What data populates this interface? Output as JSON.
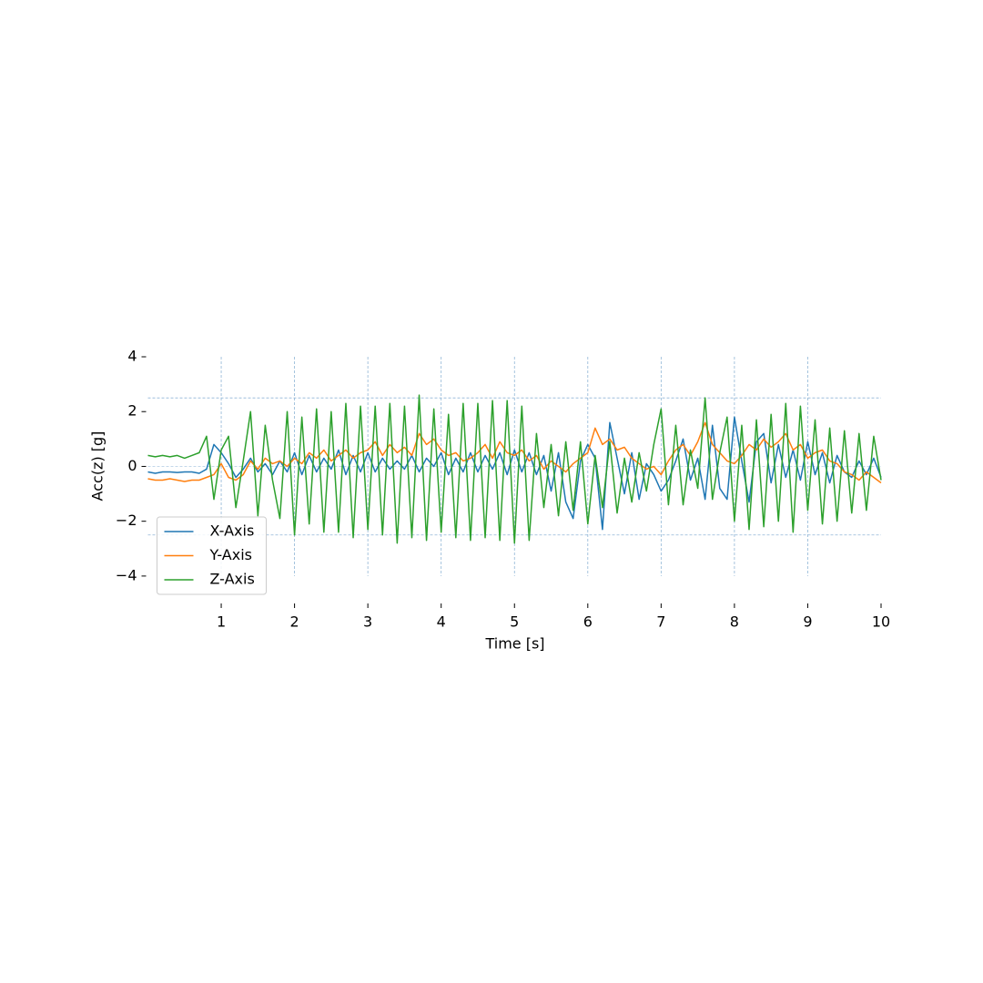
{
  "chart_data": {
    "type": "line",
    "xlabel": "Time [s]",
    "ylabel": "Acc(z) [g]",
    "x": [
      0,
      0.1,
      0.2,
      0.3,
      0.4,
      0.5,
      0.6,
      0.7,
      0.8,
      0.9,
      1,
      1.1,
      1.2,
      1.3,
      1.4,
      1.5,
      1.6,
      1.7,
      1.8,
      1.9,
      2,
      2.1,
      2.2,
      2.3,
      2.4,
      2.5,
      2.6,
      2.7,
      2.8,
      2.9,
      3,
      3.1,
      3.2,
      3.3,
      3.4,
      3.5,
      3.6,
      3.7,
      3.8,
      3.9,
      4,
      4.1,
      4.2,
      4.3,
      4.4,
      4.5,
      4.6,
      4.7,
      4.8,
      4.9,
      5,
      5.1,
      5.2,
      5.3,
      5.4,
      5.5,
      5.6,
      5.7,
      5.8,
      5.9,
      6,
      6.1,
      6.2,
      6.3,
      6.4,
      6.5,
      6.6,
      6.7,
      6.8,
      6.9,
      7,
      7.1,
      7.2,
      7.3,
      7.4,
      7.5,
      7.6,
      7.7,
      7.8,
      7.9,
      8,
      8.1,
      8.2,
      8.3,
      8.4,
      8.5,
      8.6,
      8.7,
      8.8,
      8.9,
      9,
      9.1,
      9.2,
      9.3,
      9.4,
      9.5,
      9.6,
      9.7,
      9.8,
      9.9,
      10
    ],
    "series": [
      {
        "name": "X-Axis",
        "color": "#1f77b4",
        "values": [
          -0.2,
          -0.25,
          -0.2,
          -0.2,
          -0.22,
          -0.2,
          -0.2,
          -0.25,
          -0.1,
          0.8,
          0.5,
          0.1,
          -0.4,
          -0.1,
          0.3,
          -0.2,
          0.1,
          -0.3,
          0.2,
          -0.2,
          0.5,
          -0.3,
          0.4,
          -0.2,
          0.3,
          -0.1,
          0.6,
          -0.3,
          0.4,
          -0.2,
          0.5,
          -0.2,
          0.3,
          -0.1,
          0.2,
          -0.1,
          0.4,
          -0.2,
          0.3,
          0,
          0.5,
          -0.3,
          0.3,
          -0.2,
          0.5,
          -0.2,
          0.4,
          -0.1,
          0.5,
          -0.3,
          0.6,
          -0.2,
          0.5,
          -0.3,
          0.4,
          -0.9,
          0.5,
          -1.3,
          -1.9,
          0.2,
          0.8,
          0.3,
          -2.3,
          1.6,
          0.3,
          -1,
          0.5,
          -1.2,
          0.1,
          -0.3,
          -0.9,
          -0.5,
          0.2,
          1,
          -0.5,
          0.3,
          -1.2,
          1.5,
          -0.8,
          -1.2,
          1.8,
          0.2,
          -1.3,
          0.9,
          1.2,
          -0.6,
          0.8,
          -0.4,
          0.6,
          -0.5,
          0.9,
          -0.3,
          0.5,
          -0.6,
          0.4,
          -0.2,
          -0.4,
          0.2,
          -0.3,
          0.3,
          -0.4
        ]
      },
      {
        "name": "Y-Axis",
        "color": "#ff7f0e",
        "values": [
          -0.45,
          -0.5,
          -0.5,
          -0.45,
          -0.5,
          -0.55,
          -0.5,
          -0.5,
          -0.4,
          -0.3,
          0.1,
          -0.4,
          -0.5,
          -0.3,
          0.2,
          -0.1,
          0.3,
          0.1,
          0.2,
          0,
          0.3,
          0.1,
          0.5,
          0.3,
          0.6,
          0.2,
          0.4,
          0.6,
          0.3,
          0.5,
          0.6,
          0.9,
          0.4,
          0.8,
          0.5,
          0.7,
          0.4,
          1.2,
          0.8,
          1,
          0.6,
          0.4,
          0.5,
          0.2,
          0.3,
          0.5,
          0.8,
          0.3,
          0.9,
          0.5,
          0.4,
          0.6,
          0.2,
          0.4,
          -0.1,
          0.2,
          0,
          -0.2,
          0.1,
          0.3,
          0.5,
          1.4,
          0.8,
          1,
          0.6,
          0.7,
          0.3,
          0.1,
          -0.1,
          0,
          -0.3,
          0.2,
          0.6,
          0.8,
          0.4,
          0.9,
          1.6,
          0.8,
          0.5,
          0.2,
          0.1,
          0.4,
          0.8,
          0.6,
          1,
          0.7,
          0.9,
          1.2,
          0.6,
          0.8,
          0.3,
          0.5,
          0.6,
          0.2,
          0.1,
          -0.2,
          -0.3,
          -0.5,
          -0.2,
          -0.4,
          -0.6
        ]
      },
      {
        "name": "Z-Axis",
        "color": "#2ca02c",
        "values": [
          0.4,
          0.35,
          0.4,
          0.35,
          0.4,
          0.3,
          0.4,
          0.5,
          1.1,
          -1.2,
          0.6,
          1.1,
          -1.5,
          0.2,
          2,
          -1.8,
          1.5,
          -0.5,
          -1.9,
          2,
          -2.5,
          1.8,
          -2.1,
          2.1,
          -2.4,
          2,
          -2.4,
          2.3,
          -2.6,
          2.2,
          -2.3,
          2.2,
          -2.5,
          2.3,
          -2.8,
          2.2,
          -2.6,
          2.6,
          -2.7,
          2.1,
          -2.4,
          1.9,
          -2.6,
          2.3,
          -2.7,
          2.3,
          -2.6,
          2.4,
          -2.7,
          2.4,
          -2.8,
          2.2,
          -2.7,
          1.2,
          -1.5,
          0.8,
          -1.8,
          0.9,
          -1.6,
          0.9,
          -2.1,
          0.4,
          -1.5,
          0.9,
          -1.7,
          0.3,
          -1.3,
          0.5,
          -0.9,
          0.8,
          2.1,
          -1.4,
          1.5,
          -1.4,
          0.6,
          -0.8,
          2.5,
          -1.2,
          0.5,
          1.8,
          -2,
          1.5,
          -2.3,
          1.7,
          -2.2,
          1.9,
          -2,
          2.3,
          -2.4,
          2.2,
          -1.6,
          1.7,
          -2.1,
          1.4,
          -2,
          1.3,
          -1.7,
          1.2,
          -1.6,
          1.1,
          -0.5
        ]
      }
    ],
    "xlim": [
      0,
      10
    ],
    "ylim": [
      -5,
      4
    ],
    "xticks": [
      1,
      2,
      3,
      4,
      5,
      6,
      7,
      8,
      9,
      10
    ],
    "yticks": [
      {
        "value": -4,
        "label": "−4"
      },
      {
        "value": -2,
        "label": "−2"
      },
      0,
      2,
      4
    ],
    "reference_lines": [
      2.5,
      0,
      -2.5
    ],
    "grid": true,
    "legend": "lower left"
  }
}
